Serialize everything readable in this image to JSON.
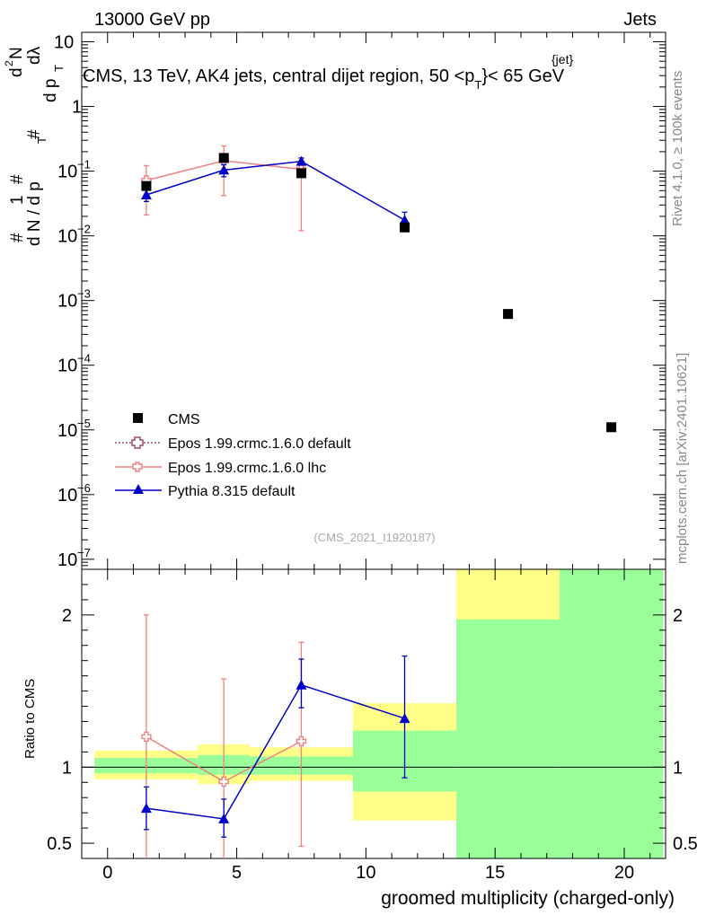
{
  "header": {
    "left": "13000 GeV pp",
    "right": "Jets",
    "title": "CMS, 13 TeV, AK4 jets, central dijet region, 50 <p",
    "title_sup": "{jet}",
    "title_sub": "T",
    "title_end": "}< 65 GeV"
  },
  "sidebar": {
    "rivet": "Rivet 4.1.0, ≥ 100k events",
    "mcplots": "mcplots.cern.ch [arXiv:2401.10621]"
  },
  "watermark": "(CMS_2021_I1920187)",
  "colors": {
    "cms": "#000000",
    "epos_default": "#9c4a6a",
    "epos_lhc": "#f08080",
    "pythia": "#0000cc",
    "band_green": "#99ff99",
    "band_yellow": "#ffff88"
  },
  "chart_data": [
    {
      "type": "scatter",
      "panel": "main",
      "yscale": "log",
      "ylabel": "# 1/dN/dp_T # d^2N/(dp_T dλ)",
      "ylabel_parts": [
        "1",
        "d N / d p",
        "T",
        "#",
        "d",
        "2",
        "N",
        "d p",
        "T",
        "dλ",
        "#",
        "#"
      ],
      "xlim": [
        -1,
        21.6
      ],
      "ylim": [
        7e-08,
        14
      ],
      "yticks": [
        {
          "label": "10",
          "exp": "",
          "value": 10
        },
        {
          "label": "1",
          "exp": "",
          "value": 1
        },
        {
          "label": "10",
          "exp": "−1",
          "value": 0.1
        },
        {
          "label": "10",
          "exp": "−2",
          "value": 0.01
        },
        {
          "label": "10",
          "exp": "−3",
          "value": 0.001
        },
        {
          "label": "10",
          "exp": "−4",
          "value": 0.0001
        },
        {
          "label": "10",
          "exp": "−5",
          "value": 1e-05
        },
        {
          "label": "10",
          "exp": "−6",
          "value": 1e-06
        },
        {
          "label": "10",
          "exp": "−7",
          "value": 1e-07
        }
      ],
      "series": [
        {
          "name": "CMS",
          "key": "cms",
          "x": [
            1.5,
            4.5,
            7.5,
            11.5,
            15.5,
            19.5
          ],
          "y": [
            0.059,
            0.16,
            0.093,
            0.0135,
            0.00062,
            1.1e-05
          ]
        },
        {
          "name": "Epos 1.99.crmc.1.6.0 default",
          "key": "epos_default",
          "x": [],
          "y": []
        },
        {
          "name": "Epos 1.99.crmc.1.6.0 lhc",
          "key": "epos_lhc",
          "x": [
            1.5,
            4.5,
            7.5
          ],
          "y": [
            0.072,
            0.145,
            0.107
          ],
          "yerr_lo": [
            0.021,
            0.042,
            0.012
          ],
          "yerr_hi": [
            0.122,
            0.245,
            0.158
          ]
        },
        {
          "name": "Pythia 8.315 default",
          "key": "pythia",
          "x": [
            1.5,
            4.5,
            7.5,
            11.5
          ],
          "y": [
            0.043,
            0.104,
            0.142,
            0.0175
          ],
          "yerr_lo": [
            0.034,
            0.082,
            0.125,
            0.0122
          ],
          "yerr_hi": [
            0.052,
            0.126,
            0.16,
            0.0232
          ]
        }
      ],
      "legend": [
        "CMS",
        "Epos 1.99.crmc.1.6.0 default",
        "Epos 1.99.crmc.1.6.0 lhc",
        "Pythia 8.315 default"
      ]
    },
    {
      "type": "scatter",
      "panel": "ratio",
      "ylabel": "Ratio to CMS",
      "xlabel": "groomed multiplicity (charged-only)",
      "xlim": [
        -1,
        21.6
      ],
      "ylim": [
        0.4,
        2.3
      ],
      "yticks": [
        {
          "label": "0.5",
          "value": 0.5
        },
        {
          "label": "1",
          "value": 1
        },
        {
          "label": "2",
          "value": 2
        }
      ],
      "xticks": [
        {
          "label": "0",
          "value": 0
        },
        {
          "label": "5",
          "value": 5
        },
        {
          "label": "10",
          "value": 10
        },
        {
          "label": "15",
          "value": 15
        },
        {
          "label": "20",
          "value": 20
        }
      ],
      "bands": [
        {
          "x0": -0.5,
          "x1": 3.5,
          "green": [
            0.96,
            1.06
          ],
          "yellow": [
            0.92,
            1.11
          ]
        },
        {
          "x0": 3.5,
          "x1": 5.5,
          "green": [
            0.95,
            1.08
          ],
          "yellow": [
            0.89,
            1.15
          ]
        },
        {
          "x0": 5.5,
          "x1": 9.5,
          "green": [
            0.95,
            1.07
          ],
          "yellow": [
            0.91,
            1.13
          ]
        },
        {
          "x0": 9.5,
          "x1": 13.5,
          "green": [
            0.84,
            1.24
          ],
          "yellow": [
            0.65,
            1.42
          ]
        },
        {
          "x0": 13.5,
          "x1": 17.5,
          "green": [
            0.4,
            1.97
          ],
          "yellow": [
            0.4,
            2.3
          ]
        },
        {
          "x0": 17.5,
          "x1": 21.5,
          "green": [
            0.4,
            2.3
          ],
          "yellow": [
            0.4,
            2.3
          ]
        }
      ],
      "series": [
        {
          "name": "Epos 1.99.crmc.1.6.0 lhc",
          "key": "epos_lhc",
          "x": [
            1.5,
            4.5,
            7.5
          ],
          "y": [
            1.2,
            0.905,
            1.17
          ],
          "yerr_lo": [
            0.3,
            0.3,
            0.48
          ],
          "yerr_hi": [
            2.0,
            1.58,
            1.82
          ]
        },
        {
          "name": "Pythia 8.315 default",
          "key": "pythia",
          "x": [
            1.5,
            4.5,
            7.5,
            11.5
          ],
          "y": [
            0.73,
            0.66,
            1.54,
            1.32
          ],
          "yerr_lo": [
            0.59,
            0.54,
            1.39,
            0.93
          ],
          "yerr_hi": [
            0.87,
            0.79,
            1.71,
            1.73
          ]
        }
      ]
    }
  ]
}
